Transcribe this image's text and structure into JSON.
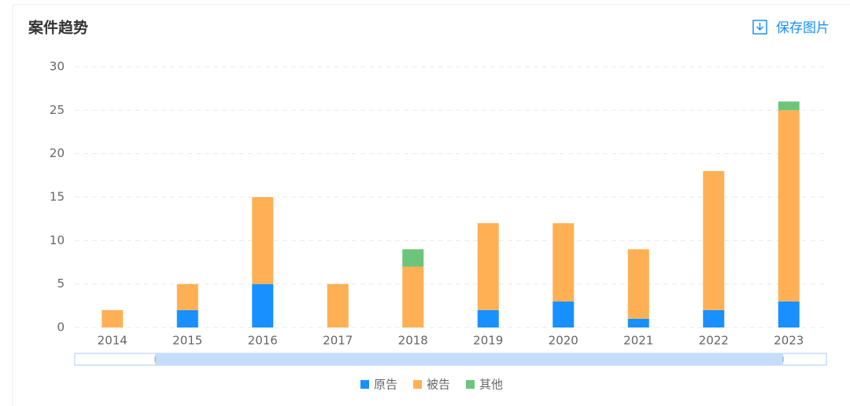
{
  "header": {
    "title": "案件趋势",
    "action": "保存图片"
  },
  "chart_data": {
    "type": "stacked_bar",
    "categories": [
      "2014",
      "2015",
      "2016",
      "2017",
      "2018",
      "2019",
      "2020",
      "2021",
      "2022",
      "2023"
    ],
    "series": [
      {
        "name": "原告",
        "color": "#1890ff",
        "values": [
          0,
          2,
          5,
          0,
          0,
          2,
          3,
          1,
          2,
          3
        ]
      },
      {
        "name": "被告",
        "color": "#ffb055",
        "values": [
          2,
          3,
          10,
          5,
          7,
          10,
          9,
          8,
          16,
          22
        ]
      },
      {
        "name": "其他",
        "color": "#6cc57a",
        "values": [
          0,
          0,
          0,
          0,
          2,
          0,
          0,
          0,
          0,
          1
        ]
      }
    ],
    "ylim": [
      0,
      30
    ],
    "yticks": [
      0,
      5,
      10,
      15,
      20,
      25,
      30
    ],
    "grid": true
  }
}
